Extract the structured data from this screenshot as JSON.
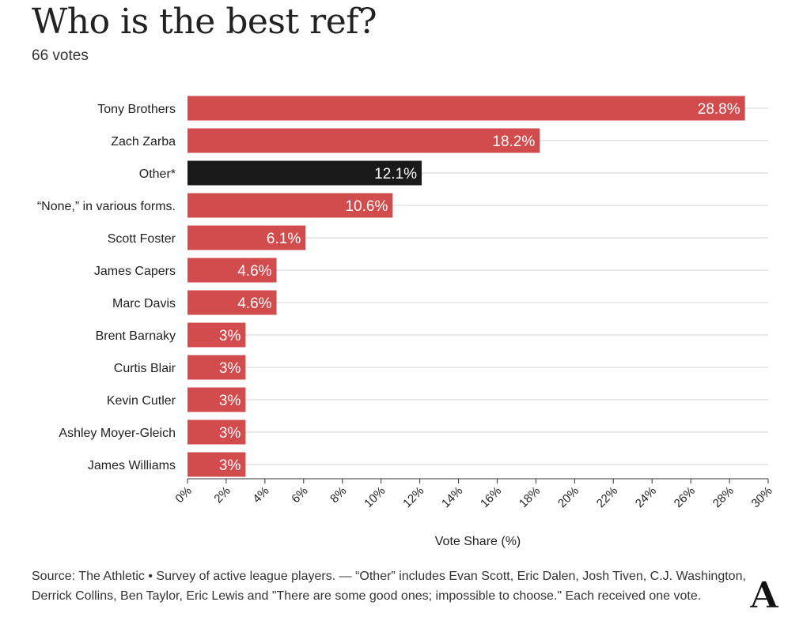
{
  "header": {
    "title": "Who is the best ref?",
    "subtitle": "66 votes"
  },
  "footer": {
    "source": "Source: The Athletic • Survey of active league players. — “Other” includes Evan Scott, Eric Dalen, Josh Tiven, C.J. Washington, Derrick Collins, Ben Taylor, Eric Lewis and \"There are some good ones; impossible to choose.\" Each received one vote."
  },
  "logo": {
    "icon": "athletic-logo-icon",
    "text": "A"
  },
  "colors": {
    "bar": "#d24b4d",
    "highlight_bar": "#1a1a1a",
    "grid": "#e9e9e9",
    "axis": "#333333"
  },
  "chart_data": {
    "type": "bar",
    "orientation": "horizontal",
    "title": "Who is the best ref?",
    "subtitle": "66 votes",
    "xlabel": "Vote Share (%)",
    "ylabel": "",
    "xlim": [
      0,
      30
    ],
    "tick_step": 2,
    "tick_labels": [
      "0%",
      "2%",
      "4%",
      "6%",
      "8%",
      "10%",
      "12%",
      "14%",
      "16%",
      "18%",
      "20%",
      "22%",
      "24%",
      "26%",
      "28%",
      "30%"
    ],
    "grid": true,
    "categories": [
      "Tony Brothers",
      "Zach Zarba",
      "Other*",
      "“None,” in various forms.",
      "Scott Foster",
      "James Capers",
      "Marc Davis",
      "Brent Barnaky",
      "Curtis Blair",
      "Kevin Cutler",
      "Ashley Moyer-Gleich",
      "James Williams"
    ],
    "values": [
      28.8,
      18.2,
      12.1,
      10.6,
      6.1,
      4.6,
      4.6,
      3,
      3,
      3,
      3,
      3
    ],
    "value_labels": [
      "28.8%",
      "18.2%",
      "12.1%",
      "10.6%",
      "6.1%",
      "4.6%",
      "4.6%",
      "3%",
      "3%",
      "3%",
      "3%",
      "3%"
    ],
    "highlighted": [
      "Other*"
    ]
  }
}
